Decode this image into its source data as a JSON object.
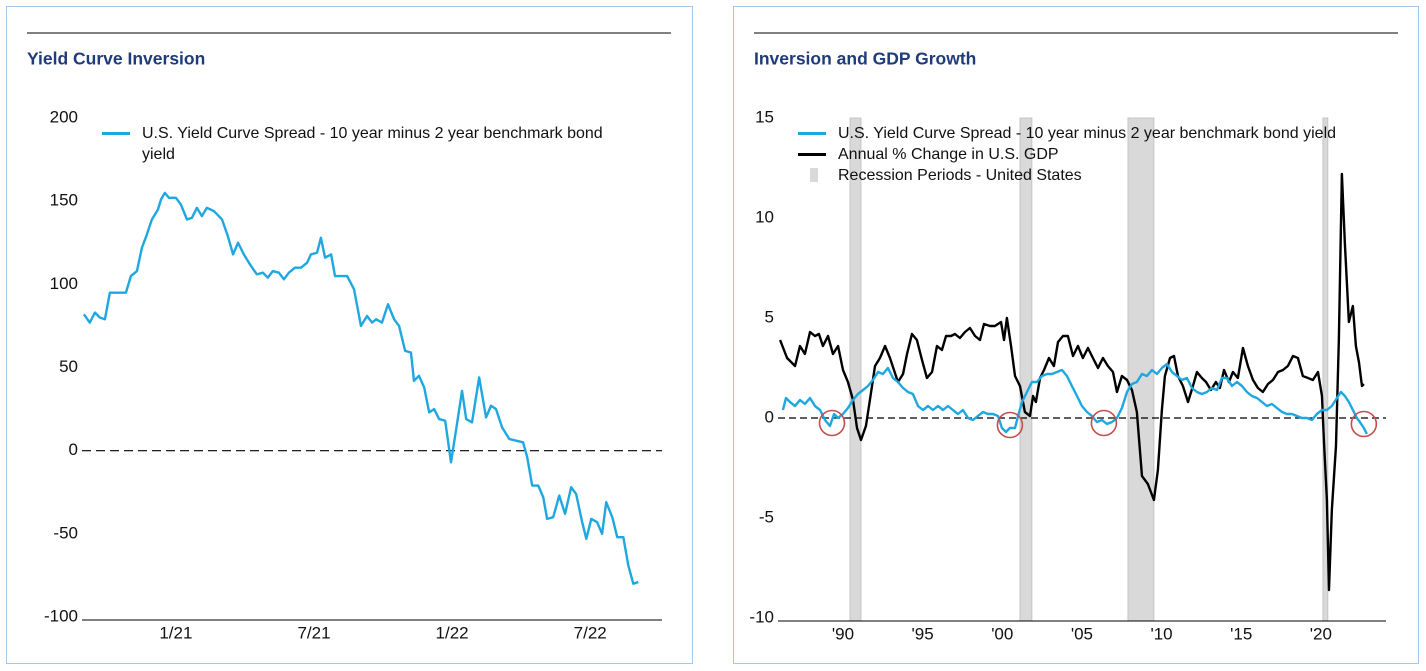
{
  "chart_data": [
    {
      "type": "line",
      "title": "Yield Curve Inversion",
      "xlim": [
        2020.66,
        2022.76
      ],
      "ylim": [
        -100,
        200
      ],
      "xticks": [
        {
          "value": 2021.0,
          "label": "1/21"
        },
        {
          "value": 2021.5,
          "label": "7/21"
        },
        {
          "value": 2022.0,
          "label": "1/22"
        },
        {
          "value": 2022.5,
          "label": "7/22"
        }
      ],
      "yticks": [
        -100,
        -50,
        0,
        50,
        100,
        150,
        200
      ],
      "hline": 0,
      "grid": false,
      "legend": "upper left",
      "series": [
        {
          "name": "U.S. Yield Curve Spread - 10 year minus 2 year benchmark bond yield",
          "color": "#1ea7e1",
          "x": [
            2020.667,
            2020.688,
            2020.707,
            2020.725,
            2020.743,
            2020.761,
            2020.819,
            2020.837,
            2020.859,
            2020.877,
            2020.895,
            2020.913,
            2020.935,
            2020.946,
            2020.96,
            2020.975,
            2021.0,
            2021.018,
            2021.04,
            2021.058,
            2021.076,
            2021.094,
            2021.112,
            2021.138,
            2021.167,
            2021.188,
            2021.207,
            2021.225,
            2021.246,
            2021.268,
            2021.293,
            2021.315,
            2021.333,
            2021.351,
            2021.373,
            2021.391,
            2021.409,
            2021.431,
            2021.453,
            2021.475,
            2021.489,
            2021.511,
            2021.525,
            2021.54,
            2021.562,
            2021.576,
            2021.62,
            2021.645,
            2021.67,
            2021.692,
            2021.71,
            2021.725,
            2021.746,
            2021.768,
            2021.79,
            2021.808,
            2021.83,
            2021.851,
            2021.862,
            2021.88,
            2021.899,
            2021.917,
            2021.935,
            2021.953,
            2021.975,
            2021.996,
            2022.014,
            2022.036,
            2022.051,
            2022.072,
            2022.098,
            2022.123,
            2022.141,
            2022.159,
            2022.181,
            2022.207,
            2022.232,
            2022.257,
            2022.272,
            2022.29,
            2022.312,
            2022.33,
            2022.344,
            2022.366,
            2022.388,
            2022.409,
            2022.431,
            2022.449,
            2022.471,
            2022.486,
            2022.504,
            2022.525,
            2022.543,
            2022.558,
            2022.58,
            2022.598,
            2022.62,
            2022.638,
            2022.656,
            2022.674
          ],
          "values": [
            82,
            77,
            83,
            80,
            79,
            95,
            95,
            105,
            108,
            122,
            130,
            139,
            145,
            151,
            155,
            152,
            152,
            148,
            139,
            140,
            146,
            141,
            146,
            144,
            139,
            129,
            118,
            125,
            118,
            112,
            106,
            107,
            104,
            108,
            107,
            103,
            107,
            110,
            110,
            113,
            118,
            119,
            128,
            116,
            118,
            105,
            105,
            97,
            75,
            81,
            77,
            79,
            77,
            88,
            79,
            75,
            60,
            59,
            42,
            45,
            38,
            23,
            25,
            19,
            18,
            -7,
            12,
            36,
            19,
            17,
            44,
            20,
            27,
            25,
            14,
            7,
            6,
            5,
            -4,
            -21,
            -21,
            -28,
            -41,
            -40,
            -27,
            -38,
            -22,
            -26,
            -43,
            -53,
            -41,
            -43,
            -50,
            -31,
            -40,
            -52,
            -52,
            -69,
            -80,
            -79
          ]
        }
      ]
    },
    {
      "type": "line",
      "title": "Inversion and GDP Growth",
      "xlim": [
        1985.92,
        2024.09
      ],
      "ylim": [
        -10,
        15
      ],
      "xticks": [
        {
          "value": 1990,
          "label": "'90"
        },
        {
          "value": 1995,
          "label": "'95"
        },
        {
          "value": 2000,
          "label": "'00"
        },
        {
          "value": 2005,
          "label": "'05"
        },
        {
          "value": 2010,
          "label": "'10"
        },
        {
          "value": 2015,
          "label": "'15"
        },
        {
          "value": 2020,
          "label": "'20"
        }
      ],
      "yticks": [
        -10,
        -5,
        0,
        5,
        10,
        15
      ],
      "hline": 0,
      "grid": false,
      "legend": "upper left",
      "series": [
        {
          "name": "U.S. Yield Curve Spread - 10 year minus 2 year benchmark bond yield",
          "color": "#1ea7e1",
          "x": [
            1986.23,
            1986.42,
            1986.67,
            1986.99,
            1987.3,
            1987.61,
            1987.93,
            1988.24,
            1988.56,
            1988.87,
            1989.18,
            1989.44,
            1989.69,
            1990.0,
            1990.31,
            1990.63,
            1990.94,
            1991.26,
            1991.57,
            1991.88,
            1992.2,
            1992.51,
            1992.82,
            1993.14,
            1993.45,
            1993.77,
            1994.08,
            1994.39,
            1994.71,
            1995.02,
            1995.34,
            1995.65,
            1995.96,
            1996.28,
            1996.59,
            1996.9,
            1997.22,
            1997.53,
            1997.85,
            1998.16,
            1998.47,
            1998.79,
            1999.1,
            1999.42,
            1999.73,
            1999.98,
            2000.23,
            2000.48,
            2000.8,
            2000.99,
            2001.24,
            2001.55,
            2001.86,
            2002.18,
            2002.49,
            2002.81,
            2003.12,
            2003.43,
            2003.75,
            2004.06,
            2004.37,
            2004.69,
            2005.0,
            2005.32,
            2005.63,
            2005.94,
            2006.26,
            2006.57,
            2006.89,
            2007.2,
            2007.51,
            2007.83,
            2008.14,
            2008.45,
            2008.77,
            2009.08,
            2009.4,
            2009.71,
            2010.02,
            2010.34,
            2010.65,
            2010.97,
            2011.28,
            2011.59,
            2011.91,
            2012.22,
            2012.53,
            2012.85,
            2013.16,
            2013.48,
            2013.79,
            2014.1,
            2014.42,
            2014.73,
            2015.05,
            2015.36,
            2015.67,
            2015.99,
            2016.3,
            2016.61,
            2016.93,
            2017.24,
            2017.56,
            2017.87,
            2018.18,
            2018.5,
            2018.81,
            2019.13,
            2019.44,
            2019.75,
            2020.07,
            2020.38,
            2020.69,
            2021.01,
            2021.26,
            2021.51,
            2021.76,
            2022.01,
            2022.26,
            2022.45,
            2022.7,
            2022.89
          ],
          "values": [
            0.4,
            1.0,
            0.8,
            0.6,
            0.9,
            0.7,
            1.0,
            0.6,
            0.4,
            -0.1,
            -0.4,
            0.2,
            0.0,
            0.2,
            0.5,
            0.9,
            1.2,
            1.4,
            1.6,
            1.9,
            2.3,
            2.2,
            2.5,
            2.0,
            1.8,
            1.5,
            1.3,
            1.2,
            0.6,
            0.4,
            0.6,
            0.4,
            0.6,
            0.4,
            0.6,
            0.4,
            0.2,
            0.4,
            0.0,
            -0.1,
            0.1,
            0.3,
            0.2,
            0.2,
            0.1,
            -0.5,
            -0.7,
            -0.5,
            -0.5,
            0.1,
            0.8,
            1.3,
            1.8,
            1.8,
            2.1,
            2.2,
            2.2,
            2.3,
            2.4,
            2.1,
            1.6,
            1.1,
            0.6,
            0.3,
            0.1,
            -0.2,
            -0.1,
            -0.3,
            -0.2,
            0.0,
            0.5,
            1.3,
            1.7,
            1.8,
            2.2,
            2.1,
            2.4,
            2.2,
            2.5,
            2.7,
            2.3,
            2.1,
            1.9,
            2.0,
            1.5,
            1.3,
            1.2,
            1.3,
            1.5,
            1.4,
            2.0,
            2.0,
            1.6,
            1.8,
            1.6,
            1.3,
            1.1,
            1.0,
            0.8,
            0.6,
            0.7,
            0.5,
            0.3,
            0.2,
            0.2,
            0.1,
            0.0,
            0.0,
            -0.1,
            0.2,
            0.4,
            0.4,
            0.6,
            1.0,
            1.3,
            1.1,
            0.8,
            0.4,
            0.0,
            -0.2,
            -0.5,
            -0.8
          ]
        },
        {
          "name": "Annual % Change in U.S. GDP",
          "color": "#000000",
          "x": [
            1986.05,
            1986.49,
            1986.99,
            1987.3,
            1987.61,
            1987.93,
            1988.24,
            1988.49,
            1988.74,
            1989.06,
            1989.37,
            1989.69,
            1990.0,
            1990.31,
            1990.63,
            1990.88,
            1991.13,
            1991.44,
            1991.69,
            1992.01,
            1992.32,
            1992.64,
            1992.95,
            1993.2,
            1993.45,
            1993.77,
            1994.02,
            1994.33,
            1994.64,
            1994.96,
            1995.27,
            1995.59,
            1995.9,
            1996.21,
            1996.47,
            1996.78,
            1997.03,
            1997.34,
            1997.66,
            1997.97,
            1998.29,
            1998.6,
            1998.85,
            1999.23,
            1999.54,
            1999.92,
            2000.11,
            2000.29,
            2000.55,
            2000.8,
            2001.11,
            2001.42,
            2001.74,
            2001.93,
            2002.11,
            2002.37,
            2002.62,
            2002.93,
            2003.24,
            2003.5,
            2003.81,
            2004.12,
            2004.44,
            2004.75,
            2005.06,
            2005.38,
            2005.69,
            2006.01,
            2006.32,
            2006.63,
            2006.95,
            2007.2,
            2007.51,
            2007.83,
            2008.14,
            2008.45,
            2008.77,
            2009.14,
            2009.52,
            2009.77,
            2010.02,
            2010.21,
            2010.53,
            2010.78,
            2011.03,
            2011.34,
            2011.66,
            2011.97,
            2012.22,
            2012.53,
            2012.79,
            2013.1,
            2013.41,
            2013.66,
            2013.92,
            2014.23,
            2014.48,
            2014.79,
            2015.11,
            2015.42,
            2015.74,
            2016.05,
            2016.36,
            2016.68,
            2016.99,
            2017.31,
            2017.62,
            2017.93,
            2018.25,
            2018.56,
            2018.87,
            2019.19,
            2019.5,
            2019.82,
            2020.07,
            2020.19,
            2020.38,
            2020.51,
            2020.69,
            2020.95,
            2021.13,
            2021.32,
            2021.51,
            2021.76,
            2022.01,
            2022.2,
            2022.39,
            2022.58,
            2022.7
          ],
          "values": [
            3.9,
            3.0,
            2.6,
            3.6,
            3.2,
            4.3,
            4.1,
            4.2,
            3.6,
            4.1,
            3.2,
            3.6,
            2.4,
            1.8,
            0.9,
            -0.5,
            -1.1,
            -0.4,
            0.9,
            2.6,
            3.0,
            3.6,
            3.0,
            2.4,
            1.8,
            2.2,
            3.2,
            4.2,
            3.9,
            2.9,
            2.0,
            2.3,
            3.6,
            3.4,
            4.1,
            4.1,
            4.2,
            4.0,
            4.3,
            4.5,
            4.1,
            3.9,
            4.7,
            4.6,
            4.6,
            4.8,
            3.9,
            5.0,
            3.6,
            2.1,
            1.6,
            0.3,
            0.1,
            1.1,
            0.8,
            2.0,
            2.4,
            3.0,
            2.6,
            3.8,
            4.1,
            4.1,
            3.1,
            3.6,
            3.0,
            3.5,
            3.0,
            2.5,
            3.0,
            2.6,
            2.3,
            1.3,
            2.1,
            1.9,
            1.4,
            0.3,
            -2.9,
            -3.3,
            -4.1,
            -2.6,
            0.4,
            2.1,
            3.0,
            3.1,
            2.1,
            1.6,
            0.8,
            1.6,
            2.3,
            2.0,
            1.8,
            1.4,
            1.8,
            1.5,
            2.4,
            1.8,
            2.3,
            2.0,
            3.5,
            2.6,
            1.9,
            1.5,
            1.3,
            1.7,
            1.9,
            2.3,
            2.4,
            2.6,
            3.1,
            3.0,
            2.1,
            2.0,
            1.9,
            2.3,
            1.1,
            -1.1,
            -4.1,
            -8.6,
            -4.6,
            -1.4,
            3.9,
            12.2,
            8.7,
            4.8,
            5.6,
            3.6,
            2.8,
            1.6,
            1.7
          ]
        },
        {
          "name": "Recession Periods - United States",
          "color": "#d9d9d9",
          "type": "band",
          "periods": [
            [
              1990.44,
              1991.13
            ],
            [
              2001.11,
              2001.86
            ],
            [
              2007.89,
              2009.52
            ],
            [
              2020.13,
              2020.44
            ]
          ]
        }
      ],
      "highlights": {
        "color": "#c0504d",
        "x": [
          1989.31,
          2000.48,
          2006.38,
          2022.7
        ],
        "y": [
          -0.25,
          -0.35,
          -0.25,
          -0.3
        ]
      }
    }
  ]
}
